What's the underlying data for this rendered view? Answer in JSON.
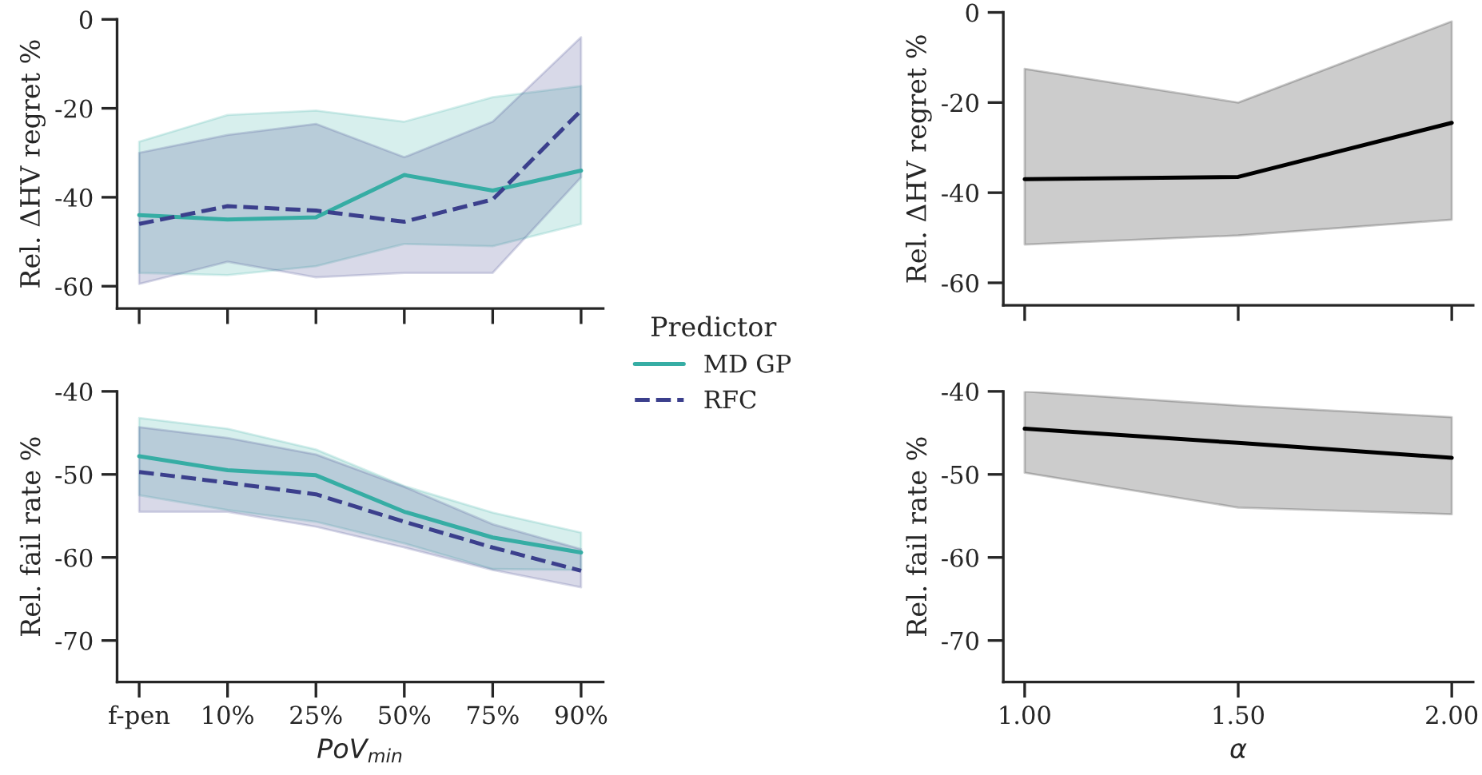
{
  "chart_data": [
    {
      "type": "line",
      "ylabel": "Rel. ΔHV regret %",
      "categories": [
        null,
        null,
        null,
        null,
        null,
        null
      ],
      "ylim": [
        -65,
        0
      ],
      "yticks": [
        -60,
        -40,
        -20,
        0
      ],
      "tick_labels": "y",
      "legend": "right",
      "legend_title": "Predictor",
      "series": [
        {
          "name": "MD GP",
          "color": "#36ada4",
          "line_style": "solid",
          "values": [
            -44,
            -45,
            -44.5,
            -35,
            -38.5,
            -34
          ],
          "lower": [
            -57,
            -57.5,
            -55.5,
            -50.5,
            -51,
            -46
          ],
          "upper": [
            -27.5,
            -21.5,
            -20.5,
            -23,
            -17.5,
            -15
          ]
        },
        {
          "name": "RFC",
          "color": "#3b3f8c",
          "line_style": "dashed",
          "values": [
            -46,
            -42,
            -43,
            -45.5,
            -40.5,
            -20.5
          ],
          "lower": [
            -59.5,
            -54.5,
            -58,
            -57,
            -57,
            -35.5
          ],
          "upper": [
            -30,
            -26,
            -23.5,
            -31,
            -23,
            -4
          ]
        }
      ]
    },
    {
      "type": "line",
      "ylabel": "Rel. ΔHV regret %",
      "x": [
        1,
        1.5,
        2
      ],
      "xlim": [
        0.95,
        2.05
      ],
      "xticks": [
        1,
        1.5,
        2
      ],
      "ylim": [
        -65,
        0
      ],
      "yticks": [
        -60,
        -40,
        -20,
        0
      ],
      "tick_labels": "y",
      "series": [
        {
          "color": "#000000",
          "line_style": "solid",
          "values": [
            -37,
            -36.5,
            -24.5
          ],
          "lower": [
            -51.5,
            -49.5,
            -46
          ],
          "upper": [
            -12.5,
            -20,
            -2
          ]
        }
      ]
    },
    {
      "type": "line",
      "ylabel": "Rel. fail rate %",
      "xlabel": "PoV$_{min}$",
      "categories": [
        "f-pen",
        "10%",
        "25%",
        "50%",
        "75%",
        "90%"
      ],
      "ylim": [
        -75,
        -40
      ],
      "yticks": [
        -70,
        -60,
        -50,
        -40
      ],
      "series": [
        {
          "color": "#36ada4",
          "line_style": "solid",
          "values": [
            -47.8,
            -49.5,
            -50.1,
            -54.5,
            -57.6,
            -59.4
          ],
          "lower": [
            -52.5,
            -54.3,
            -55.7,
            -58.3,
            -61.4,
            -61.5
          ],
          "upper": [
            -43.2,
            -44.5,
            -47,
            -51.4,
            -54.6,
            -57
          ]
        },
        {
          "color": "#3b3f8c",
          "line_style": "dashed",
          "values": [
            -49.7,
            -51,
            -52.4,
            -55.7,
            -58.8,
            -61.6
          ],
          "lower": [
            -54.5,
            -54.5,
            -56.3,
            -58.8,
            -61.5,
            -63.6
          ],
          "upper": [
            -44.3,
            -45.6,
            -47.6,
            -51.5,
            -56,
            -59
          ]
        }
      ]
    },
    {
      "type": "line",
      "ylabel": "Rel. fail rate %",
      "xlabel": "α",
      "x": [
        1,
        1.5,
        2
      ],
      "xlim": [
        0.95,
        2.05
      ],
      "xticks": [
        {
          "value": 1,
          "label": "1.00"
        },
        {
          "value": 1.5,
          "label": "1.50"
        },
        {
          "value": 2,
          "label": "2.00"
        }
      ],
      "ylim": [
        -75,
        -40
      ],
      "yticks": [
        -70,
        -60,
        -50,
        -40
      ],
      "series": [
        {
          "color": "#000000",
          "line_style": "solid",
          "values": [
            -44.5,
            -46.2,
            -48
          ],
          "lower": [
            -49.8,
            -54,
            -54.8
          ],
          "upper": [
            -40,
            -41.7,
            -43.1
          ]
        }
      ]
    }
  ]
}
